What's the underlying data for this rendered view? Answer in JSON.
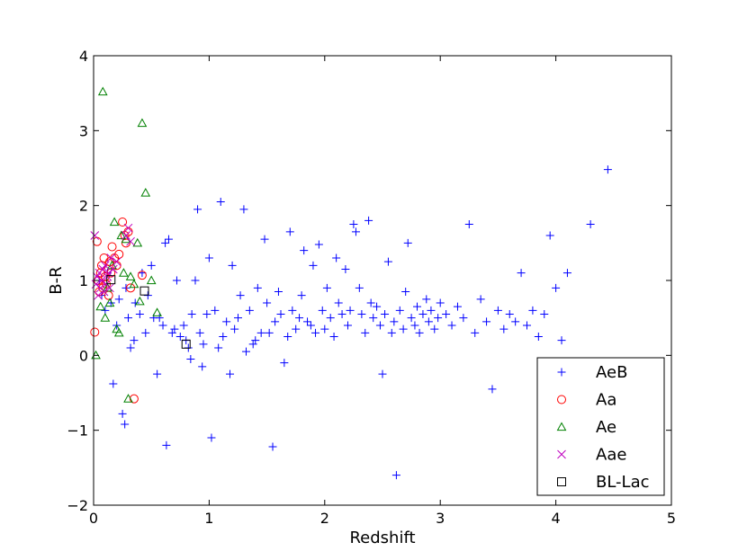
{
  "chart_data": {
    "type": "scatter",
    "xlabel": "Redshift",
    "ylabel": "B-R",
    "xlim": [
      0,
      5
    ],
    "ylim": [
      -2,
      4
    ],
    "xticks": [
      0,
      1,
      2,
      3,
      4,
      5
    ],
    "xtick_labels": [
      "0",
      "1",
      "2",
      "3",
      "4",
      "5"
    ],
    "yticks": [
      -2,
      -1,
      0,
      1,
      2,
      3,
      4
    ],
    "ytick_labels": [
      "−2",
      "−1",
      "0",
      "1",
      "2",
      "3",
      "4"
    ],
    "grid": false,
    "legend_position": "lower-right",
    "series": [
      {
        "name": "AeB",
        "marker": "plus",
        "color": "#0000ff",
        "points": [
          [
            0.05,
            1.0
          ],
          [
            0.07,
            0.8
          ],
          [
            0.1,
            0.6
          ],
          [
            0.12,
            1.1
          ],
          [
            0.15,
            0.7
          ],
          [
            0.17,
            -0.38
          ],
          [
            0.2,
            0.4
          ],
          [
            0.22,
            0.75
          ],
          [
            0.25,
            -0.78
          ],
          [
            0.27,
            -0.92
          ],
          [
            0.28,
            0.9
          ],
          [
            0.3,
            0.5
          ],
          [
            0.32,
            0.1
          ],
          [
            0.35,
            0.2
          ],
          [
            0.36,
            0.7
          ],
          [
            0.4,
            0.55
          ],
          [
            0.42,
            1.1
          ],
          [
            0.45,
            0.3
          ],
          [
            0.47,
            0.8
          ],
          [
            0.5,
            1.2
          ],
          [
            0.52,
            0.5
          ],
          [
            0.55,
            -0.25
          ],
          [
            0.57,
            0.5
          ],
          [
            0.6,
            0.4
          ],
          [
            0.62,
            1.5
          ],
          [
            0.63,
            -1.2
          ],
          [
            0.65,
            1.55
          ],
          [
            0.68,
            0.3
          ],
          [
            0.7,
            0.35
          ],
          [
            0.72,
            1.0
          ],
          [
            0.75,
            0.25
          ],
          [
            0.78,
            0.4
          ],
          [
            0.8,
            0.2
          ],
          [
            0.82,
            0.1
          ],
          [
            0.84,
            -0.05
          ],
          [
            0.85,
            0.55
          ],
          [
            0.88,
            1.0
          ],
          [
            0.9,
            1.95
          ],
          [
            0.92,
            0.3
          ],
          [
            0.94,
            -0.15
          ],
          [
            0.95,
            0.15
          ],
          [
            0.98,
            0.55
          ],
          [
            1.0,
            1.3
          ],
          [
            1.02,
            -1.1
          ],
          [
            1.05,
            0.6
          ],
          [
            1.08,
            0.1
          ],
          [
            1.1,
            2.05
          ],
          [
            1.12,
            0.25
          ],
          [
            1.15,
            0.45
          ],
          [
            1.18,
            -0.25
          ],
          [
            1.2,
            1.2
          ],
          [
            1.22,
            0.35
          ],
          [
            1.25,
            0.5
          ],
          [
            1.27,
            0.8
          ],
          [
            1.3,
            1.95
          ],
          [
            1.32,
            0.05
          ],
          [
            1.35,
            0.6
          ],
          [
            1.38,
            0.15
          ],
          [
            1.4,
            0.2
          ],
          [
            1.42,
            0.9
          ],
          [
            1.45,
            0.3
          ],
          [
            1.48,
            1.55
          ],
          [
            1.5,
            0.7
          ],
          [
            1.52,
            0.3
          ],
          [
            1.55,
            -1.22
          ],
          [
            1.57,
            0.45
          ],
          [
            1.6,
            0.85
          ],
          [
            1.62,
            0.55
          ],
          [
            1.65,
            -0.1
          ],
          [
            1.68,
            0.25
          ],
          [
            1.7,
            1.65
          ],
          [
            1.72,
            0.6
          ],
          [
            1.75,
            0.35
          ],
          [
            1.78,
            0.5
          ],
          [
            1.8,
            0.8
          ],
          [
            1.82,
            1.4
          ],
          [
            1.85,
            0.45
          ],
          [
            1.88,
            0.4
          ],
          [
            1.9,
            1.2
          ],
          [
            1.92,
            0.3
          ],
          [
            1.95,
            1.48
          ],
          [
            1.98,
            0.6
          ],
          [
            2.0,
            0.35
          ],
          [
            2.02,
            0.9
          ],
          [
            2.05,
            0.5
          ],
          [
            2.08,
            0.25
          ],
          [
            2.1,
            1.3
          ],
          [
            2.12,
            0.7
          ],
          [
            2.15,
            0.55
          ],
          [
            2.18,
            1.15
          ],
          [
            2.2,
            0.4
          ],
          [
            2.22,
            0.6
          ],
          [
            2.25,
            1.75
          ],
          [
            2.27,
            1.65
          ],
          [
            2.3,
            0.9
          ],
          [
            2.32,
            0.55
          ],
          [
            2.35,
            0.3
          ],
          [
            2.38,
            1.8
          ],
          [
            2.4,
            0.7
          ],
          [
            2.42,
            0.5
          ],
          [
            2.45,
            0.65
          ],
          [
            2.48,
            0.4
          ],
          [
            2.5,
            -0.25
          ],
          [
            2.52,
            0.55
          ],
          [
            2.55,
            1.25
          ],
          [
            2.58,
            0.3
          ],
          [
            2.6,
            0.45
          ],
          [
            2.62,
            -1.6
          ],
          [
            2.65,
            0.6
          ],
          [
            2.68,
            0.35
          ],
          [
            2.7,
            0.85
          ],
          [
            2.72,
            1.5
          ],
          [
            2.75,
            0.5
          ],
          [
            2.78,
            0.4
          ],
          [
            2.8,
            0.65
          ],
          [
            2.82,
            0.3
          ],
          [
            2.85,
            0.55
          ],
          [
            2.88,
            0.75
          ],
          [
            2.9,
            0.45
          ],
          [
            2.92,
            0.6
          ],
          [
            2.95,
            0.35
          ],
          [
            2.98,
            0.5
          ],
          [
            3.0,
            0.7
          ],
          [
            3.05,
            0.55
          ],
          [
            3.1,
            0.4
          ],
          [
            3.15,
            0.65
          ],
          [
            3.2,
            0.5
          ],
          [
            3.25,
            1.75
          ],
          [
            3.3,
            0.3
          ],
          [
            3.35,
            0.75
          ],
          [
            3.4,
            0.45
          ],
          [
            3.45,
            -0.45
          ],
          [
            3.5,
            0.6
          ],
          [
            3.55,
            0.35
          ],
          [
            3.6,
            0.55
          ],
          [
            3.65,
            0.45
          ],
          [
            3.7,
            1.1
          ],
          [
            3.75,
            0.4
          ],
          [
            3.8,
            0.6
          ],
          [
            3.85,
            0.25
          ],
          [
            3.9,
            0.55
          ],
          [
            3.95,
            1.6
          ],
          [
            4.0,
            0.9
          ],
          [
            4.05,
            0.2
          ],
          [
            4.1,
            1.1
          ],
          [
            4.3,
            1.75
          ],
          [
            4.45,
            2.48
          ]
        ]
      },
      {
        "name": "Aa",
        "marker": "circle",
        "color": "#ff0000",
        "points": [
          [
            0.01,
            0.31
          ],
          [
            0.03,
            1.52
          ],
          [
            0.04,
            1.0
          ],
          [
            0.05,
            0.85
          ],
          [
            0.06,
            1.1
          ],
          [
            0.07,
            1.2
          ],
          [
            0.08,
            0.9
          ],
          [
            0.09,
            1.3
          ],
          [
            0.1,
            1.05
          ],
          [
            0.11,
            0.95
          ],
          [
            0.12,
            1.15
          ],
          [
            0.13,
            0.8
          ],
          [
            0.14,
            1.25
          ],
          [
            0.15,
            1.1
          ],
          [
            0.16,
            1.45
          ],
          [
            0.18,
            1.3
          ],
          [
            0.2,
            1.2
          ],
          [
            0.22,
            1.35
          ],
          [
            0.25,
            1.78
          ],
          [
            0.27,
            1.6
          ],
          [
            0.28,
            1.5
          ],
          [
            0.3,
            1.65
          ],
          [
            0.32,
            0.9
          ],
          [
            0.35,
            -0.58
          ],
          [
            0.42,
            1.07
          ]
        ]
      },
      {
        "name": "Ae",
        "marker": "triangle",
        "color": "#008000",
        "points": [
          [
            0.02,
            0.0
          ],
          [
            0.06,
            0.65
          ],
          [
            0.08,
            3.52
          ],
          [
            0.1,
            0.5
          ],
          [
            0.12,
            0.9
          ],
          [
            0.14,
            0.7
          ],
          [
            0.16,
            1.2
          ],
          [
            0.18,
            1.78
          ],
          [
            0.2,
            0.35
          ],
          [
            0.22,
            0.3
          ],
          [
            0.24,
            1.6
          ],
          [
            0.26,
            1.1
          ],
          [
            0.28,
            1.55
          ],
          [
            0.3,
            -0.58
          ],
          [
            0.32,
            1.05
          ],
          [
            0.35,
            0.95
          ],
          [
            0.38,
            1.5
          ],
          [
            0.4,
            0.72
          ],
          [
            0.42,
            3.1
          ],
          [
            0.45,
            2.17
          ],
          [
            0.5,
            1.0
          ],
          [
            0.55,
            0.57
          ]
        ]
      },
      {
        "name": "Aae",
        "marker": "cross",
        "color": "#bf00bf",
        "points": [
          [
            0.01,
            1.6
          ],
          [
            0.02,
            0.95
          ],
          [
            0.03,
            1.05
          ],
          [
            0.04,
            0.8
          ],
          [
            0.05,
            1.1
          ],
          [
            0.06,
            0.9
          ],
          [
            0.07,
            1.0
          ],
          [
            0.08,
            1.15
          ],
          [
            0.09,
            0.85
          ],
          [
            0.1,
            1.2
          ],
          [
            0.11,
            0.95
          ],
          [
            0.12,
            1.05
          ],
          [
            0.13,
            1.1
          ],
          [
            0.14,
            0.9
          ],
          [
            0.15,
            1.3
          ],
          [
            0.17,
            1.15
          ],
          [
            0.2,
            1.25
          ],
          [
            0.28,
            1.6
          ],
          [
            0.3,
            1.7
          ],
          [
            0.32,
            1.52
          ]
        ]
      },
      {
        "name": "BL-Lac",
        "marker": "square",
        "color": "#000000",
        "points": [
          [
            0.15,
            1.01
          ],
          [
            0.44,
            0.86
          ],
          [
            0.8,
            0.15
          ]
        ]
      }
    ]
  }
}
